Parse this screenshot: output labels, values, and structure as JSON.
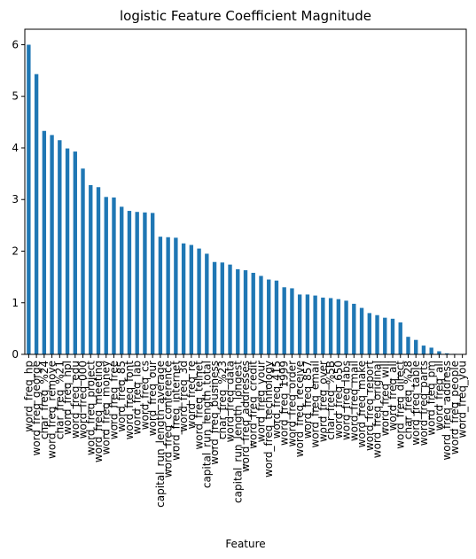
{
  "chart_data": {
    "type": "bar",
    "title": "logistic Feature Coefficient Magnitude",
    "xlabel": "Feature",
    "ylabel": "",
    "ylim": [
      0,
      6.3
    ],
    "yticks": [
      0,
      1,
      2,
      3,
      4,
      5,
      6
    ],
    "bar_color": "#1f77b4",
    "grid": false,
    "categories": [
      "word_freq_hp",
      "word_freq_george",
      "char_freq_%24",
      "word_freq_remove",
      "char_freq_%21",
      "word_freq_hpl",
      "word_freq_edu",
      "word_freq_000",
      "word_freq_project",
      "word_freq_meeting",
      "word_freq_money",
      "word_freq_free",
      "word_freq_85",
      "word_freq_font",
      "word_freq_lab",
      "word_freq_cs",
      "word_freq_our",
      "capital_run_length_average",
      "word_freq_conference",
      "word_freq_internet",
      "word_freq_3d",
      "word_freq_re",
      "word_freq_telnet",
      "capital_run_length_total",
      "word_freq_business",
      "char_freq_%23",
      "word_freq_data",
      "capital_run_length_longest",
      "word_freq_addresses",
      "word_freq_credit",
      "word_freq_your",
      "word_freq_technology",
      "word_freq_415",
      "word_freq_1999",
      "word_freq_order",
      "word_freq_receive",
      "word_freq_857",
      "word_freq_email",
      "word_freq_over",
      "char_freq_%5B",
      "word_freq_650",
      "word_freq_labs",
      "word_freq_mail",
      "word_freq_make",
      "word_freq_report",
      "word_freq_original",
      "word_freq_will",
      "word_freq_all",
      "word_freq_direct",
      "char_freq_%28",
      "word_freq_table",
      "word_freq_parts",
      "word_freq_pm",
      "word_freq_all2",
      "word_freq_address",
      "word_freq_people",
      "word_freq_you"
    ],
    "values": [
      6.0,
      5.43,
      4.33,
      4.25,
      4.15,
      3.99,
      3.93,
      3.6,
      3.28,
      3.24,
      3.05,
      3.04,
      2.86,
      2.78,
      2.76,
      2.75,
      2.74,
      2.28,
      2.27,
      2.26,
      2.15,
      2.12,
      2.05,
      1.95,
      1.79,
      1.78,
      1.74,
      1.65,
      1.63,
      1.58,
      1.52,
      1.45,
      1.43,
      1.3,
      1.28,
      1.16,
      1.16,
      1.14,
      1.1,
      1.09,
      1.07,
      1.04,
      0.98,
      0.9,
      0.8,
      0.76,
      0.71,
      0.69,
      0.62,
      0.34,
      0.28,
      0.17,
      0.13,
      0.06,
      0.02,
      0.01,
      0.005
    ],
    "tick_labels": [
      "word_freq_hp",
      "word_freq_george",
      "char_freq_%24",
      "word_freq_remove",
      "char_freq_%21",
      "word_freq_hpl",
      "word_freq_edu",
      "word_freq_000",
      "word_freq_project",
      "word_freq_meeting",
      "word_freq_money",
      "word_freq_free",
      "word_freq_85",
      "word_freq_font",
      "word_freq_lab",
      "word_freq_cs",
      "word_freq_our",
      "capital_run_length_average",
      "word_freq_conference",
      "word_freq_internet",
      "word_freq_3d",
      "word_freq_re",
      "word_freq_telnet",
      "capital_run_length_total",
      "word_freq_business",
      "char_freq_%23",
      "word_freq_data",
      "capital_run_length_longest",
      "word_freq_addresses",
      "word_freq_credit",
      "word_freq_your",
      "word_freq_technology",
      "word_freq_415",
      "word_freq_1999",
      "word_freq_order",
      "word_freq_receive",
      "word_freq_857",
      "word_freq_email",
      "word_freq_over",
      "char_freq_%5B",
      "word_freq_650",
      "word_freq_labs",
      "word_freq_mail",
      "word_freq_make",
      "word_freq_report",
      "word_freq_original",
      "word_freq_will",
      "word_freq_all",
      "word_freq_direct",
      "char_freq_%28",
      "word_freq_table",
      "word_freq_parts",
      "word_freq_pm",
      "word_freq_all",
      "word_freq_address",
      "word_freq_people",
      "word_freq_you"
    ]
  }
}
